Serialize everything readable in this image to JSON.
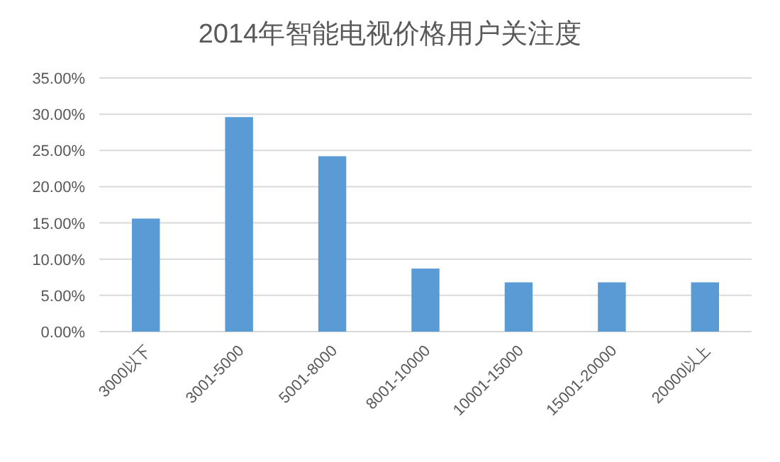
{
  "chart_data": {
    "type": "bar",
    "title": "2014年智能电视价格用户关注度",
    "categories": [
      "3000以下",
      "3001-5000",
      "5001-8000",
      "8001-10000",
      "10001-15000",
      "15001-20000",
      "20000以上"
    ],
    "values": [
      15.6,
      29.6,
      24.2,
      8.7,
      6.8,
      6.8,
      6.8
    ],
    "color": "#5b9bd5",
    "ylim": [
      0,
      35
    ],
    "yticks": [
      {
        "value": 0,
        "label": "0.00%"
      },
      {
        "value": 5,
        "label": "5.00%"
      },
      {
        "value": 10,
        "label": "10.00%"
      },
      {
        "value": 15,
        "label": "15.00%"
      },
      {
        "value": 20,
        "label": "20.00%"
      },
      {
        "value": 25,
        "label": "25.00%"
      },
      {
        "value": 30,
        "label": "30.00%"
      },
      {
        "value": 35,
        "label": "35.00%"
      }
    ],
    "grid": "y"
  }
}
